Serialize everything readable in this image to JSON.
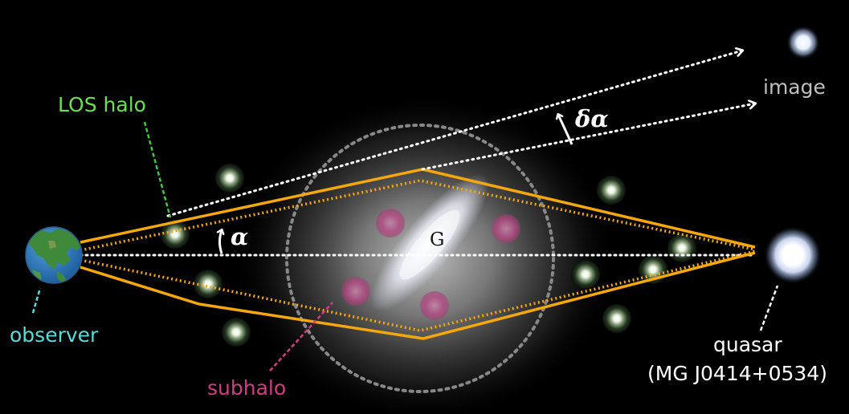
{
  "labels": {
    "los_halo": "LOS halo",
    "observer": "observer",
    "subhalo": "subhalo",
    "image": "image",
    "quasar_name": "quasar",
    "quasar_id": "(MG J0414+0534)",
    "galaxy": "G",
    "alpha": "α",
    "delta_alpha": "δα"
  },
  "colors": {
    "background": "#000000",
    "ray_paths": "#f5a70e",
    "los_halo": "#6be04d",
    "observer": "#56dcdc",
    "subhalo": "#d23c83",
    "image_label": "#bfbfbf",
    "text": "#ffffff",
    "einstein_ring": "#888888"
  },
  "icons": {
    "observer": "earth-globe-icon",
    "halo": "glowing-halo-icon",
    "subhalo": "pink-sphere-icon",
    "quasar": "bright-star-icon",
    "image": "lensed-image-icon"
  }
}
